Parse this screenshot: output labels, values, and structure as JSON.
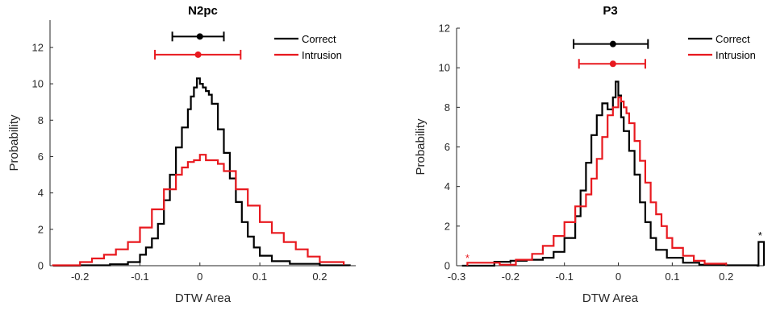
{
  "chart_data": [
    {
      "type": "line",
      "subtype": "stairs-histogram-with-errorbars",
      "title": "N2pc",
      "xlabel": "DTW Area",
      "ylabel": "Probability",
      "xlim": [
        -0.25,
        0.26
      ],
      "ylim": [
        0,
        13.5
      ],
      "xticks": [
        -0.2,
        -0.1,
        0,
        0.1,
        0.2
      ],
      "xtick_labels": [
        "-0.2",
        "-0.1",
        "0",
        "0.1",
        "0.2"
      ],
      "yticks": [
        0,
        2,
        4,
        6,
        8,
        10,
        12
      ],
      "ytick_labels": [
        "0",
        "2",
        "4",
        "6",
        "8",
        "10",
        "12"
      ],
      "legend_position": "top-right",
      "grid": false,
      "series": [
        {
          "name": "Correct",
          "color": "#000000",
          "x": [
            -0.245,
            -0.2,
            -0.15,
            -0.12,
            -0.1,
            -0.09,
            -0.08,
            -0.07,
            -0.06,
            -0.05,
            -0.04,
            -0.03,
            -0.02,
            -0.015,
            -0.01,
            -0.005,
            0.0,
            0.005,
            0.01,
            0.015,
            0.02,
            0.03,
            0.04,
            0.05,
            0.06,
            0.07,
            0.08,
            0.09,
            0.1,
            0.12,
            0.15,
            0.2,
            0.25
          ],
          "y": [
            0,
            0.02,
            0.08,
            0.2,
            0.6,
            1.0,
            1.5,
            2.3,
            3.6,
            5.0,
            6.5,
            7.6,
            8.6,
            9.3,
            9.8,
            10.3,
            10.0,
            9.8,
            9.6,
            9.4,
            8.9,
            7.5,
            6.2,
            4.8,
            3.5,
            2.4,
            1.6,
            1.0,
            0.55,
            0.25,
            0.1,
            0.02,
            0
          ]
        },
        {
          "name": "Intrusion",
          "color": "#e8191f",
          "x": [
            -0.245,
            -0.2,
            -0.18,
            -0.16,
            -0.14,
            -0.12,
            -0.1,
            -0.08,
            -0.06,
            -0.04,
            -0.03,
            -0.02,
            -0.01,
            0.0,
            0.01,
            0.02,
            0.03,
            0.04,
            0.06,
            0.08,
            0.1,
            0.12,
            0.14,
            0.16,
            0.18,
            0.2,
            0.24
          ],
          "y": [
            0.02,
            0.2,
            0.4,
            0.6,
            0.9,
            1.3,
            2.1,
            3.1,
            4.2,
            5.0,
            5.4,
            5.7,
            5.8,
            6.1,
            5.8,
            5.8,
            5.6,
            5.2,
            4.2,
            3.3,
            2.4,
            1.8,
            1.3,
            0.9,
            0.5,
            0.2,
            0.05
          ]
        }
      ],
      "errorbars": [
        {
          "name": "Correct",
          "color": "#000000",
          "y": 12.6,
          "center": 0.0,
          "low": -0.046,
          "high": 0.04
        },
        {
          "name": "Intrusion",
          "color": "#e8191f",
          "y": 11.6,
          "center": -0.003,
          "low": -0.075,
          "high": 0.068
        }
      ]
    },
    {
      "type": "line",
      "subtype": "stairs-histogram-with-errorbars",
      "title": "P3",
      "xlabel": "DTW Area",
      "ylabel": "Probability",
      "xlim": [
        -0.3,
        0.27
      ],
      "ylim": [
        0,
        12
      ],
      "xticks": [
        -0.3,
        -0.2,
        -0.1,
        0,
        0.1,
        0.2
      ],
      "xtick_labels": [
        "-0.3",
        "-0.2",
        "-0.1",
        "0",
        "0.1",
        "0.2"
      ],
      "yticks": [
        0,
        2,
        4,
        6,
        8,
        10,
        12
      ],
      "ytick_labels": [
        "0",
        "2",
        "4",
        "6",
        "8",
        "10",
        "12"
      ],
      "legend_position": "top-right",
      "grid": false,
      "annotations": [
        {
          "text": "*",
          "x": 0.263,
          "y": 1.35,
          "color": "#000000"
        },
        {
          "text": "*",
          "x": -0.28,
          "y": 0.2,
          "color": "#e8191f"
        }
      ],
      "series": [
        {
          "name": "Correct",
          "color": "#000000",
          "x": [
            -0.29,
            -0.23,
            -0.2,
            -0.17,
            -0.14,
            -0.12,
            -0.1,
            -0.08,
            -0.07,
            -0.06,
            -0.05,
            -0.04,
            -0.03,
            -0.02,
            -0.01,
            -0.005,
            0.0,
            0.005,
            0.01,
            0.02,
            0.03,
            0.04,
            0.05,
            0.06,
            0.07,
            0.09,
            0.12,
            0.15,
            0.2,
            0.258,
            0.26,
            0.268,
            0.27
          ],
          "y": [
            0,
            0.2,
            0.25,
            0.3,
            0.4,
            0.7,
            1.4,
            2.5,
            3.8,
            5.2,
            6.6,
            7.6,
            8.2,
            7.9,
            8.5,
            9.3,
            8.6,
            7.5,
            6.8,
            5.8,
            4.6,
            3.2,
            2.2,
            1.4,
            0.8,
            0.4,
            0.15,
            0.05,
            0.02,
            0,
            1.2,
            1.2,
            0
          ]
        },
        {
          "name": "Intrusion",
          "color": "#e8191f",
          "x": [
            -0.28,
            -0.22,
            -0.19,
            -0.16,
            -0.14,
            -0.12,
            -0.1,
            -0.08,
            -0.06,
            -0.05,
            -0.04,
            -0.03,
            -0.02,
            -0.01,
            0.0,
            0.005,
            0.01,
            0.015,
            0.02,
            0.03,
            0.04,
            0.05,
            0.06,
            0.07,
            0.08,
            0.09,
            0.1,
            0.12,
            0.14,
            0.16,
            0.2
          ],
          "y": [
            0.15,
            0.05,
            0.3,
            0.6,
            1.0,
            1.5,
            2.2,
            3.0,
            3.6,
            4.4,
            5.4,
            6.5,
            7.6,
            8.0,
            8.5,
            8.3,
            8.0,
            7.7,
            7.2,
            6.3,
            5.3,
            4.2,
            3.2,
            2.6,
            2.0,
            1.4,
            0.9,
            0.5,
            0.25,
            0.1,
            0.02
          ]
        }
      ],
      "errorbars": [
        {
          "name": "Correct",
          "color": "#000000",
          "y": 11.2,
          "center": -0.01,
          "low": -0.083,
          "high": 0.055
        },
        {
          "name": "Intrusion",
          "color": "#e8191f",
          "y": 10.2,
          "center": -0.01,
          "low": -0.073,
          "high": 0.05
        }
      ]
    }
  ]
}
